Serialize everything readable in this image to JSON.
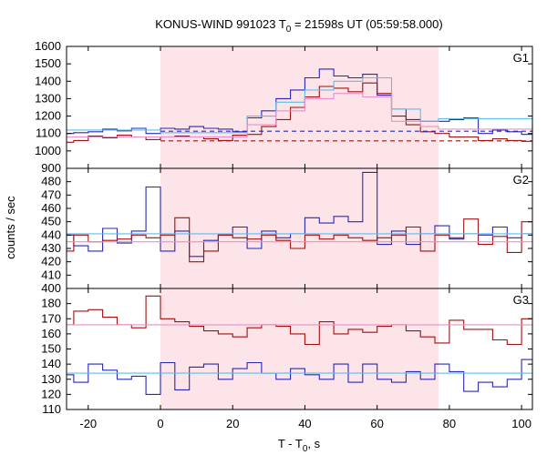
{
  "chart_data": {
    "type": "line",
    "title_prefix": "KONUS-WIND 991023 T",
    "title_sub": "0",
    "title_suffix": " = 21598s UT (05:59:58.000)",
    "xlabel_prefix": "T - T",
    "xlabel_sub": "0",
    "xlabel_suffix": ", s",
    "ylabel": "counts / sec",
    "xlim": [
      -26,
      103
    ],
    "xticks": [
      -20,
      0,
      20,
      40,
      60,
      80,
      100
    ],
    "grid": false,
    "highlight_interval": [
      0,
      77
    ],
    "colors": {
      "dark_red": "#a01010",
      "blue": "#2828b4",
      "light_blue": "#60bce8",
      "pink": "#e890c8",
      "highlight": "#fde4e8"
    },
    "panels": [
      {
        "label": "G1",
        "ylim": [
          900,
          1600
        ],
        "yticks": [
          900,
          1000,
          1100,
          1200,
          1300,
          1400,
          1500,
          1600
        ],
        "series": [
          {
            "color_key": "blue",
            "edges": [
              -26,
              -24,
              -20,
              -16,
              -12,
              -8,
              -4,
              0,
              4,
              8,
              12,
              16,
              20,
              24,
              28,
              32,
              36,
              40,
              44,
              48,
              52,
              56,
              60,
              64,
              68,
              72,
              76,
              80,
              84,
              88,
              92,
              96,
              100,
              103
            ],
            "values": [
              1100,
              1105,
              1110,
              1125,
              1115,
              1130,
              1100,
              1130,
              1125,
              1140,
              1130,
              1125,
              1110,
              1190,
              1230,
              1300,
              1350,
              1420,
              1470,
              1430,
              1420,
              1440,
              1320,
              1240,
              1180,
              1170,
              1170,
              1180,
              1190,
              1100,
              1120,
              1110,
              1095
            ]
          },
          {
            "color_key": "dark_red",
            "edges": [
              -26,
              -24,
              -20,
              -16,
              -12,
              -8,
              -4,
              0,
              4,
              8,
              12,
              16,
              20,
              24,
              28,
              32,
              36,
              40,
              44,
              48,
              52,
              56,
              60,
              64,
              68,
              72,
              76,
              80,
              84,
              88,
              92,
              96,
              100,
              103
            ],
            "values": [
              1050,
              1060,
              1085,
              1075,
              1090,
              1080,
              1065,
              1080,
              1085,
              1080,
              1070,
              1060,
              1090,
              1095,
              1140,
              1180,
              1250,
              1310,
              1370,
              1360,
              1340,
              1390,
              1330,
              1200,
              1150,
              1110,
              1100,
              1080,
              1080,
              1060,
              1070,
              1060,
              1055
            ]
          },
          {
            "color_key": "light_blue",
            "edges": [
              -26,
              0,
              24,
              32,
              40,
              48,
              56,
              64,
              72,
              77,
              103
            ],
            "values": [
              1120,
              1105,
              1200,
              1280,
              1350,
              1400,
              1420,
              1240,
              1170,
              1185,
              1120
            ]
          },
          {
            "color_key": "pink",
            "edges": [
              -26,
              0,
              24,
              32,
              40,
              48,
              56,
              64,
              72,
              77,
              103
            ],
            "values": [
              1080,
              1080,
              1150,
              1230,
              1300,
              1330,
              1310,
              1170,
              1140,
              1125,
              1050
            ]
          },
          {
            "color_key": "blue",
            "dashed": true,
            "edges": [
              0,
              103
            ],
            "values": [
              1113
            ]
          },
          {
            "color_key": "dark_red",
            "dashed": true,
            "edges": [
              0,
              103
            ],
            "values": [
              1058
            ]
          }
        ]
      },
      {
        "label": "G2",
        "ylim": [
          400,
          490
        ],
        "yticks": [
          400,
          410,
          420,
          430,
          440,
          450,
          460,
          470,
          480
        ],
        "series": [
          {
            "color_key": "blue",
            "edges": [
              -26,
              -24,
              -20,
              -16,
              -12,
              -8,
              -4,
              0,
              4,
              8,
              12,
              16,
              20,
              24,
              28,
              32,
              36,
              40,
              44,
              48,
              52,
              56,
              60,
              64,
              68,
              72,
              76,
              80,
              84,
              88,
              92,
              96,
              100,
              103
            ],
            "values": [
              440,
              432,
              428,
              445,
              434,
              443,
              476,
              428,
              443,
              424,
              436,
              440,
              446,
              430,
              443,
              438,
              441,
              453,
              449,
              454,
              450,
              487,
              433,
              443,
              433,
              441,
              447,
              437,
              441,
              440,
              446,
              438,
              441
            ]
          },
          {
            "color_key": "dark_red",
            "edges": [
              -26,
              -24,
              -20,
              -16,
              -12,
              -8,
              -4,
              0,
              4,
              8,
              12,
              16,
              20,
              24,
              28,
              32,
              36,
              40,
              44,
              48,
              52,
              56,
              60,
              64,
              68,
              72,
              76,
              80,
              84,
              88,
              92,
              96,
              100,
              103
            ],
            "values": [
              428,
              440,
              435,
              436,
              437,
              440,
              438,
              440,
              453,
              420,
              428,
              440,
              438,
              437,
              440,
              436,
              430,
              440,
              437,
              440,
              438,
              436,
              438,
              440,
              446,
              428,
              440,
              438,
              452,
              433,
              439,
              427,
              450
            ]
          },
          {
            "color_key": "light_blue",
            "edges": [
              -26,
              103
            ],
            "values": [
              441
            ]
          },
          {
            "color_key": "pink",
            "edges": [
              -26,
              103
            ],
            "values": [
              435
            ]
          }
        ]
      },
      {
        "label": "G3",
        "ylim": [
          110,
          190
        ],
        "yticks": [
          110,
          120,
          130,
          140,
          150,
          160,
          170,
          180
        ],
        "series": [
          {
            "color_key": "dark_red",
            "edges": [
              -26,
              -24,
              -20,
              -16,
              -12,
              -8,
              -4,
              0,
              4,
              8,
              12,
              16,
              20,
              24,
              28,
              32,
              36,
              40,
              44,
              48,
              52,
              56,
              60,
              64,
              68,
              72,
              76,
              80,
              84,
              88,
              92,
              96,
              100,
              103
            ],
            "values": [
              166,
              175,
              176,
              171,
              166,
              164,
              185,
              170,
              168,
              165,
              162,
              160,
              158,
              164,
              166,
              165,
              160,
              153,
              168,
              160,
              163,
              161,
              165,
              166,
              162,
              158,
              154,
              169,
              163,
              163,
              156,
              153,
              170
            ]
          },
          {
            "color_key": "blue",
            "edges": [
              -26,
              -24,
              -20,
              -16,
              -12,
              -8,
              -4,
              0,
              4,
              8,
              12,
              16,
              20,
              24,
              28,
              32,
              36,
              40,
              44,
              48,
              52,
              56,
              60,
              64,
              68,
              72,
              76,
              80,
              84,
              88,
              92,
              96,
              100,
              103
            ],
            "values": [
              133,
              128,
              140,
              136,
              130,
              132,
              120,
              141,
              123,
              138,
              140,
              130,
              137,
              141,
              134,
              130,
              137,
              133,
              130,
              140,
              128,
              140,
              130,
              128,
              135,
              130,
              140,
              135,
              122,
              128,
              125,
              130,
              143
            ]
          },
          {
            "color_key": "light_blue",
            "edges": [
              -26,
              103
            ],
            "values": [
              134
            ]
          },
          {
            "color_key": "pink",
            "edges": [
              -26,
              103
            ],
            "values": [
              166
            ]
          }
        ]
      }
    ]
  }
}
